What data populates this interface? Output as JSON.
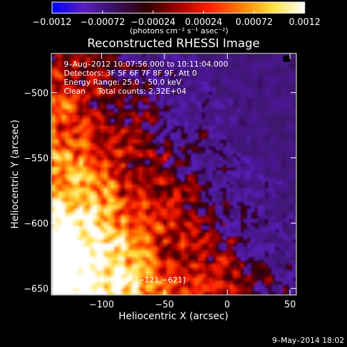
{
  "chart_data": {
    "type": "heatmap",
    "title": "Reconstructed RHESSI Image",
    "xlabel": "Heliocentric X (arcsec)",
    "ylabel": "Heliocentric Y (arcsec)",
    "xlim": [
      -140,
      55
    ],
    "ylim": [
      -655,
      -470
    ],
    "x_ticks": [
      -100,
      -50,
      0,
      50
    ],
    "x_tick_labels": [
      "−100",
      "−50",
      "0",
      "50"
    ],
    "y_ticks": [
      -650,
      -600,
      -550,
      -500
    ],
    "y_tick_labels": [
      "−650",
      "−600",
      "−550",
      "−500"
    ],
    "colorbar": {
      "range": [
        -0.0012,
        0.0012
      ],
      "ticks": [
        -0.0012,
        -0.00072,
        -0.00024,
        0.00024,
        0.00072,
        0.0012
      ],
      "tick_labels": [
        "−0.0012",
        "−0.00072",
        "−0.00024",
        "0.00024",
        "0.00072",
        "0.0012"
      ],
      "units": "(photons cm⁻² s⁻¹ asec⁻²)",
      "colormap": [
        "#0000ff",
        "#5a1fbf",
        "#3a1060",
        "#300000",
        "#a00000",
        "#ff2000",
        "#ff8000",
        "#ffe040",
        "#ffffff"
      ]
    },
    "annotations": {
      "time_range": "9–Aug–2012 10:07:56.000 to 10:11:04.000",
      "detectors": "Detectors: 3F 5F 6F 7F 8F 9F, Att 0",
      "energy": "Energy Range: 25.0 – 50.0 keV",
      "clean": "Clean     Total counts: 2.32E+04",
      "peak": "Position of Peak = [−121,−621]"
    },
    "peak": {
      "x": -121,
      "y": -621
    }
  },
  "footer": "9–May–2014 18:02"
}
